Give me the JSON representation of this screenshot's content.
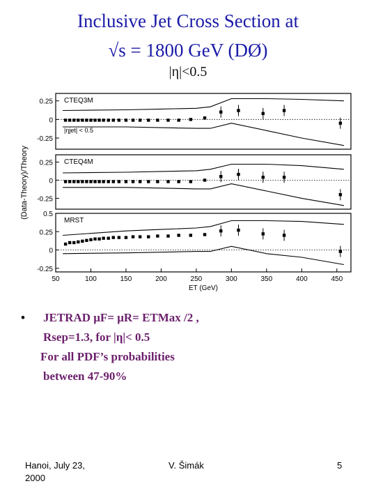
{
  "slide": {
    "title_line1": "Inclusive Jet Cross Section at",
    "title_line2": "√s = 1800 GeV (DØ)",
    "eta_cut": "|η|<0.5"
  },
  "bullet": {
    "symbol": "•",
    "line1": "JETRAD μF= μR= ETMax /2 ,",
    "line2": "Rsep=1.3, for |η|< 0.5",
    "line3": "For all PDF’s probabilities",
    "line4": "between 47-90%"
  },
  "footer": {
    "left_line1": "Hanoi, July 23,",
    "left_line2": "2000",
    "center": "V. Šimák",
    "page": "5"
  },
  "chart_data": {
    "type": "scatter",
    "ylabel": "(Data-Theory)/Theory",
    "xlabel": "ET (GeV)",
    "xlim": [
      50,
      470
    ],
    "x_ticks": [
      "50",
      "100",
      "150",
      "200",
      "250",
      "300",
      "350",
      "400",
      "450"
    ],
    "panels": [
      {
        "label": "CTEQ3M",
        "annotation": "|ηjet| < 0.5",
        "ylim": [
          -0.4,
          0.35
        ],
        "y_ticks": [
          "0.25",
          "0",
          "-0.25"
        ],
        "data": [
          [
            64,
            -0.01
          ],
          [
            70,
            -0.01
          ],
          [
            76,
            -0.01
          ],
          [
            82,
            -0.01
          ],
          [
            88,
            -0.01
          ],
          [
            94,
            -0.01
          ],
          [
            100,
            -0.01
          ],
          [
            106,
            -0.01
          ],
          [
            112,
            -0.01
          ],
          [
            118,
            -0.01
          ],
          [
            125,
            -0.01
          ],
          [
            132,
            -0.01
          ],
          [
            140,
            -0.01
          ],
          [
            150,
            -0.01
          ],
          [
            160,
            -0.01
          ],
          [
            170,
            -0.01
          ],
          [
            182,
            -0.01
          ],
          [
            195,
            -0.01
          ],
          [
            210,
            -0.01
          ],
          [
            225,
            -0.01
          ],
          [
            242,
            0.0
          ],
          [
            262,
            0.02
          ],
          [
            285,
            0.1
          ],
          [
            310,
            0.12
          ],
          [
            345,
            0.08
          ],
          [
            375,
            0.12
          ],
          [
            455,
            -0.05
          ]
        ],
        "band_upper": [
          [
            60,
            0.12
          ],
          [
            150,
            0.13
          ],
          [
            200,
            0.14
          ],
          [
            250,
            0.15
          ],
          [
            270,
            0.17
          ],
          [
            300,
            0.28
          ],
          [
            350,
            0.28
          ],
          [
            400,
            0.27
          ],
          [
            460,
            0.25
          ]
        ],
        "band_lower": [
          [
            60,
            -0.1
          ],
          [
            150,
            -0.1
          ],
          [
            200,
            -0.11
          ],
          [
            250,
            -0.12
          ],
          [
            270,
            -0.12
          ],
          [
            300,
            -0.05
          ],
          [
            350,
            -0.15
          ],
          [
            400,
            -0.25
          ],
          [
            460,
            -0.35
          ]
        ]
      },
      {
        "label": "CTEQ4M",
        "ylim": [
          -0.4,
          0.35
        ],
        "y_ticks": [
          "0.25",
          "0",
          "-0.25"
        ],
        "data": [
          [
            64,
            -0.02
          ],
          [
            70,
            -0.02
          ],
          [
            76,
            -0.02
          ],
          [
            82,
            -0.02
          ],
          [
            88,
            -0.02
          ],
          [
            94,
            -0.02
          ],
          [
            100,
            -0.02
          ],
          [
            106,
            -0.02
          ],
          [
            112,
            -0.02
          ],
          [
            118,
            -0.02
          ],
          [
            125,
            -0.02
          ],
          [
            132,
            -0.02
          ],
          [
            140,
            -0.02
          ],
          [
            150,
            -0.02
          ],
          [
            160,
            -0.02
          ],
          [
            170,
            -0.02
          ],
          [
            182,
            -0.02
          ],
          [
            195,
            -0.02
          ],
          [
            210,
            -0.02
          ],
          [
            225,
            -0.02
          ],
          [
            242,
            -0.02
          ],
          [
            262,
            0.0
          ],
          [
            285,
            0.05
          ],
          [
            310,
            0.08
          ],
          [
            345,
            0.04
          ],
          [
            375,
            0.04
          ],
          [
            455,
            -0.2
          ]
        ],
        "band_upper": [
          [
            60,
            0.1
          ],
          [
            150,
            0.11
          ],
          [
            200,
            0.12
          ],
          [
            250,
            0.13
          ],
          [
            270,
            0.15
          ],
          [
            300,
            0.22
          ],
          [
            350,
            0.22
          ],
          [
            400,
            0.2
          ],
          [
            460,
            0.15
          ]
        ],
        "band_lower": [
          [
            60,
            -0.1
          ],
          [
            150,
            -0.1
          ],
          [
            200,
            -0.11
          ],
          [
            250,
            -0.12
          ],
          [
            270,
            -0.12
          ],
          [
            300,
            -0.05
          ],
          [
            350,
            -0.15
          ],
          [
            400,
            -0.25
          ],
          [
            460,
            -0.35
          ]
        ]
      },
      {
        "label": "MRST",
        "ylim": [
          -0.3,
          0.5
        ],
        "y_ticks": [
          "0.5",
          "0.25",
          "0",
          "-0.25"
        ],
        "data": [
          [
            64,
            0.08
          ],
          [
            70,
            0.1
          ],
          [
            76,
            0.1
          ],
          [
            82,
            0.11
          ],
          [
            88,
            0.12
          ],
          [
            94,
            0.13
          ],
          [
            100,
            0.14
          ],
          [
            106,
            0.15
          ],
          [
            112,
            0.15
          ],
          [
            118,
            0.16
          ],
          [
            125,
            0.16
          ],
          [
            132,
            0.17
          ],
          [
            140,
            0.17
          ],
          [
            150,
            0.17
          ],
          [
            160,
            0.18
          ],
          [
            170,
            0.18
          ],
          [
            182,
            0.18
          ],
          [
            195,
            0.19
          ],
          [
            210,
            0.19
          ],
          [
            225,
            0.2
          ],
          [
            242,
            0.2
          ],
          [
            262,
            0.21
          ],
          [
            285,
            0.26
          ],
          [
            310,
            0.27
          ],
          [
            345,
            0.22
          ],
          [
            375,
            0.2
          ],
          [
            455,
            -0.02
          ]
        ],
        "band_upper": [
          [
            60,
            0.2
          ],
          [
            150,
            0.26
          ],
          [
            200,
            0.28
          ],
          [
            250,
            0.3
          ],
          [
            270,
            0.32
          ],
          [
            300,
            0.4
          ],
          [
            350,
            0.4
          ],
          [
            400,
            0.39
          ],
          [
            460,
            0.35
          ]
        ],
        "band_lower": [
          [
            60,
            -0.05
          ],
          [
            150,
            -0.04
          ],
          [
            200,
            -0.03
          ],
          [
            250,
            -0.02
          ],
          [
            270,
            -0.02
          ],
          [
            300,
            0.05
          ],
          [
            350,
            -0.05
          ],
          [
            400,
            -0.1
          ],
          [
            460,
            -0.2
          ]
        ]
      }
    ]
  }
}
